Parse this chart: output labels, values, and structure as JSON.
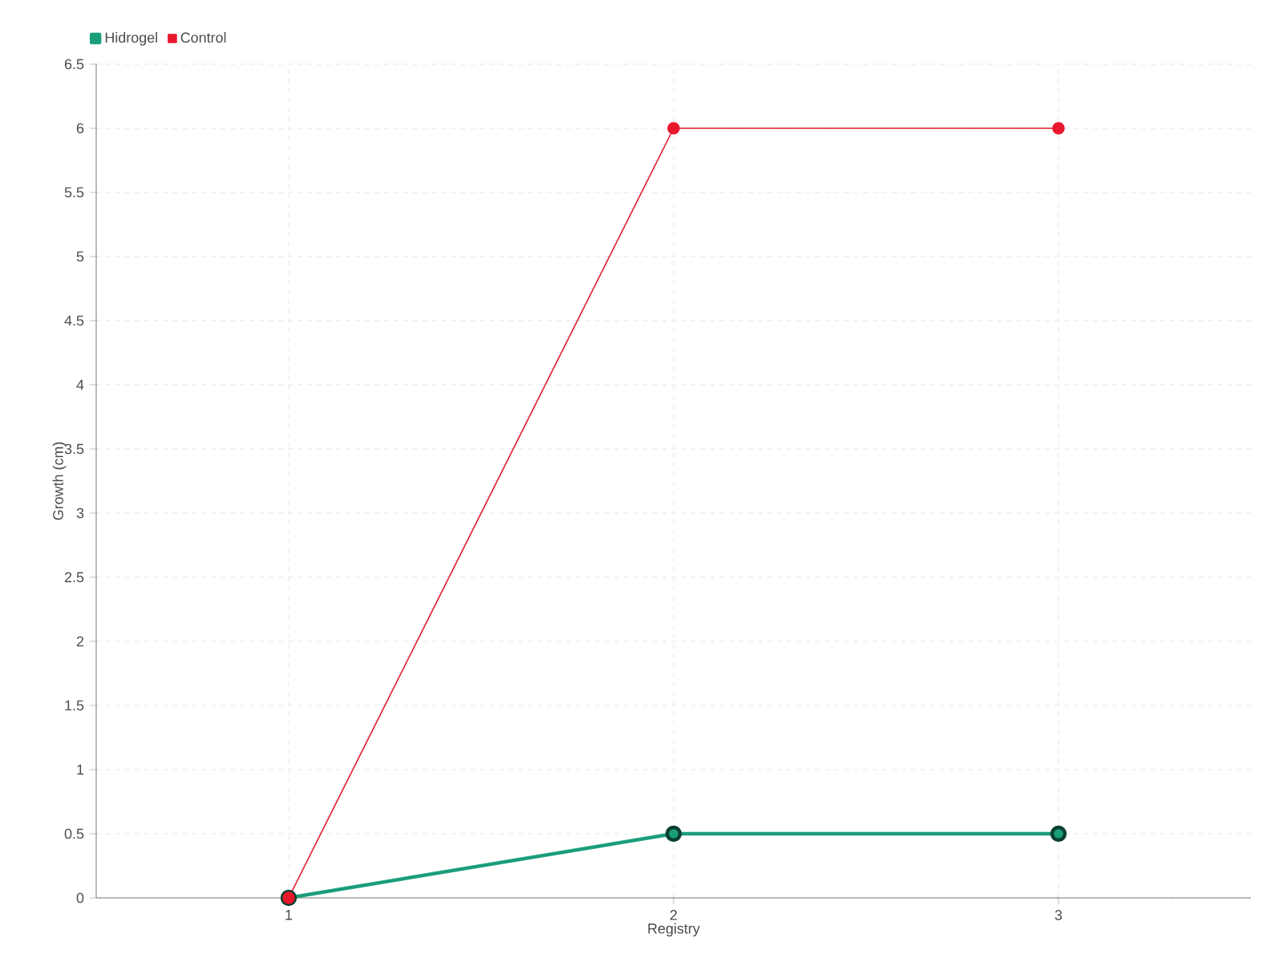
{
  "chart_data": {
    "type": "line",
    "xlabel": "Registry",
    "ylabel": "Growth (cm)",
    "categories": [
      "1",
      "2",
      "3"
    ],
    "series": [
      {
        "name": "Hidrogel",
        "color": "#1a9e7a",
        "values": [
          0,
          0.5,
          0.5
        ]
      },
      {
        "name": "Control",
        "color": "#e8192c",
        "values": [
          0,
          6,
          6
        ]
      }
    ],
    "ylim": [
      0,
      6.5
    ],
    "yticks": [
      0,
      0.5,
      1,
      1.5,
      2,
      2.5,
      3,
      3.5,
      4,
      4.5,
      5,
      5.5,
      6,
      6.5
    ],
    "grid": true,
    "legend": "top left",
    "marker": "circle",
    "line_style": "solid"
  }
}
